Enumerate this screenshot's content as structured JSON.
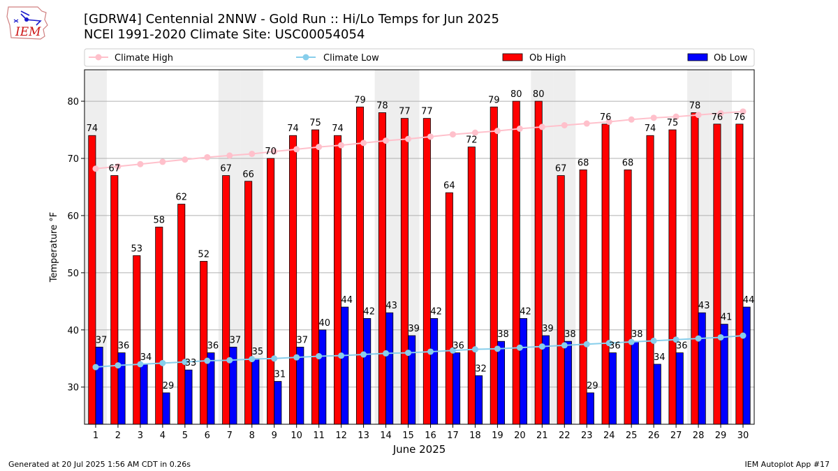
{
  "logo": {
    "text": "IEM"
  },
  "header": {
    "title_line1": "[GDRW4] Centennial 2NNW - Gold Run :: Hi/Lo Temps for Jun 2025",
    "title_line2": "NCEI 1991-2020 Climate Site: USC00054054"
  },
  "footer": {
    "generated": "Generated at 20 Jul 2025 1:56 AM CDT in 0.26s",
    "app": "IEM Autoplot App #17"
  },
  "colors": {
    "ob_high": "#ff0000",
    "ob_low": "#0000ff",
    "climate_high": "#ffc0cb",
    "climate_low": "#87ceeb",
    "weekend_shade": "#eeeeee",
    "grid": "#b0b0b0"
  },
  "chart_data": {
    "type": "bar",
    "xlabel": "June 2025",
    "ylabel": "Temperature °F",
    "ylim": [
      23.5,
      85.5
    ],
    "yticks": [
      30,
      40,
      50,
      60,
      70,
      80
    ],
    "grid": "horizontal",
    "legend_position": "top",
    "categories": [
      "1",
      "2",
      "3",
      "4",
      "5",
      "6",
      "7",
      "8",
      "9",
      "10",
      "11",
      "12",
      "13",
      "14",
      "15",
      "16",
      "17",
      "18",
      "19",
      "20",
      "21",
      "22",
      "23",
      "24",
      "25",
      "26",
      "27",
      "28",
      "29",
      "30"
    ],
    "shaded_days": [
      "1",
      "7",
      "8",
      "14",
      "15",
      "21",
      "22",
      "28",
      "29"
    ],
    "series": [
      {
        "name": "Ob High",
        "kind": "bar",
        "values": [
          74,
          67,
          53,
          58,
          62,
          52,
          67,
          66,
          70,
          74,
          75,
          74,
          79,
          78,
          77,
          77,
          64,
          72,
          79,
          80,
          80,
          67,
          68,
          76,
          68,
          74,
          75,
          78,
          76,
          76
        ],
        "labels": [
          "74",
          "67",
          "53",
          "58",
          "62",
          "52",
          "67",
          "66",
          "70",
          "74",
          "75",
          "74",
          "79",
          "78",
          "77",
          "77",
          "64",
          "72",
          "79",
          "80",
          "80",
          "67",
          "68",
          "76",
          "68",
          "74",
          "75",
          "78",
          "76",
          "76"
        ]
      },
      {
        "name": "Ob Low",
        "kind": "bar",
        "values": [
          37,
          36,
          34,
          29,
          33,
          36,
          37,
          35,
          31,
          37,
          40,
          44,
          42,
          43,
          39,
          42,
          36,
          32,
          38,
          42,
          39,
          38,
          29,
          36,
          38,
          34,
          36,
          43,
          41,
          44
        ],
        "labels": [
          "37",
          "36",
          "34",
          "29",
          "33",
          "36",
          "37",
          "35",
          "31",
          "37",
          "40",
          "44",
          "42",
          "43",
          "39",
          "42",
          "36",
          "32",
          "38",
          "42",
          "39",
          "38",
          "29",
          "36",
          "38",
          "34",
          "36",
          "43",
          "41",
          "44"
        ]
      },
      {
        "name": "Climate High",
        "kind": "line",
        "values": [
          68.2,
          68.6,
          69.0,
          69.4,
          69.8,
          70.2,
          70.5,
          70.8,
          71.2,
          71.6,
          72.0,
          72.3,
          72.7,
          73.1,
          73.4,
          73.8,
          74.2,
          74.5,
          74.8,
          75.2,
          75.5,
          75.8,
          76.1,
          76.4,
          76.8,
          77.1,
          77.3,
          77.6,
          77.9,
          78.2
        ]
      },
      {
        "name": "Climate Low",
        "kind": "line",
        "values": [
          33.5,
          33.8,
          34.0,
          34.2,
          34.4,
          34.6,
          34.7,
          34.9,
          35.0,
          35.2,
          35.4,
          35.5,
          35.7,
          35.9,
          36.0,
          36.2,
          36.4,
          36.6,
          36.7,
          36.9,
          37.1,
          37.3,
          37.5,
          37.7,
          37.9,
          38.1,
          38.3,
          38.5,
          38.7,
          39.0
        ]
      }
    ]
  }
}
